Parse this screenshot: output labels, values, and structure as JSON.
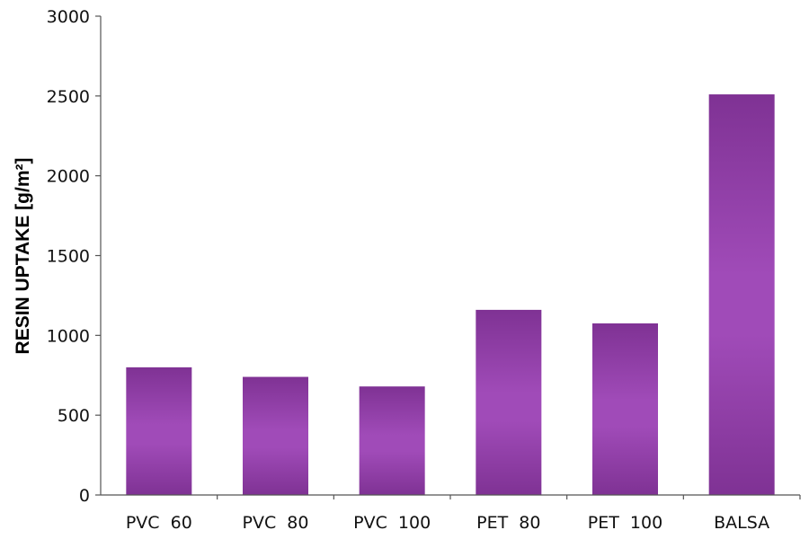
{
  "chart_data": {
    "type": "bar",
    "title": "",
    "xlabel": "",
    "ylabel": "RESIN UPTAKE [g/m²]",
    "categories": [
      "PVC  60",
      "PVC  80",
      "PVC  100",
      "PET  80",
      "PET  100",
      "BALSA"
    ],
    "values": [
      800,
      740,
      680,
      1160,
      1075,
      2510
    ],
    "ylim": [
      0,
      3000
    ],
    "yticks": [
      0,
      500,
      1000,
      1500,
      2000,
      2500,
      3000
    ],
    "grid": false,
    "legend": "none",
    "colors": {
      "bar_mid": "#a04bb8",
      "bar_edge": "#7f3294",
      "axis": "#555555"
    }
  }
}
